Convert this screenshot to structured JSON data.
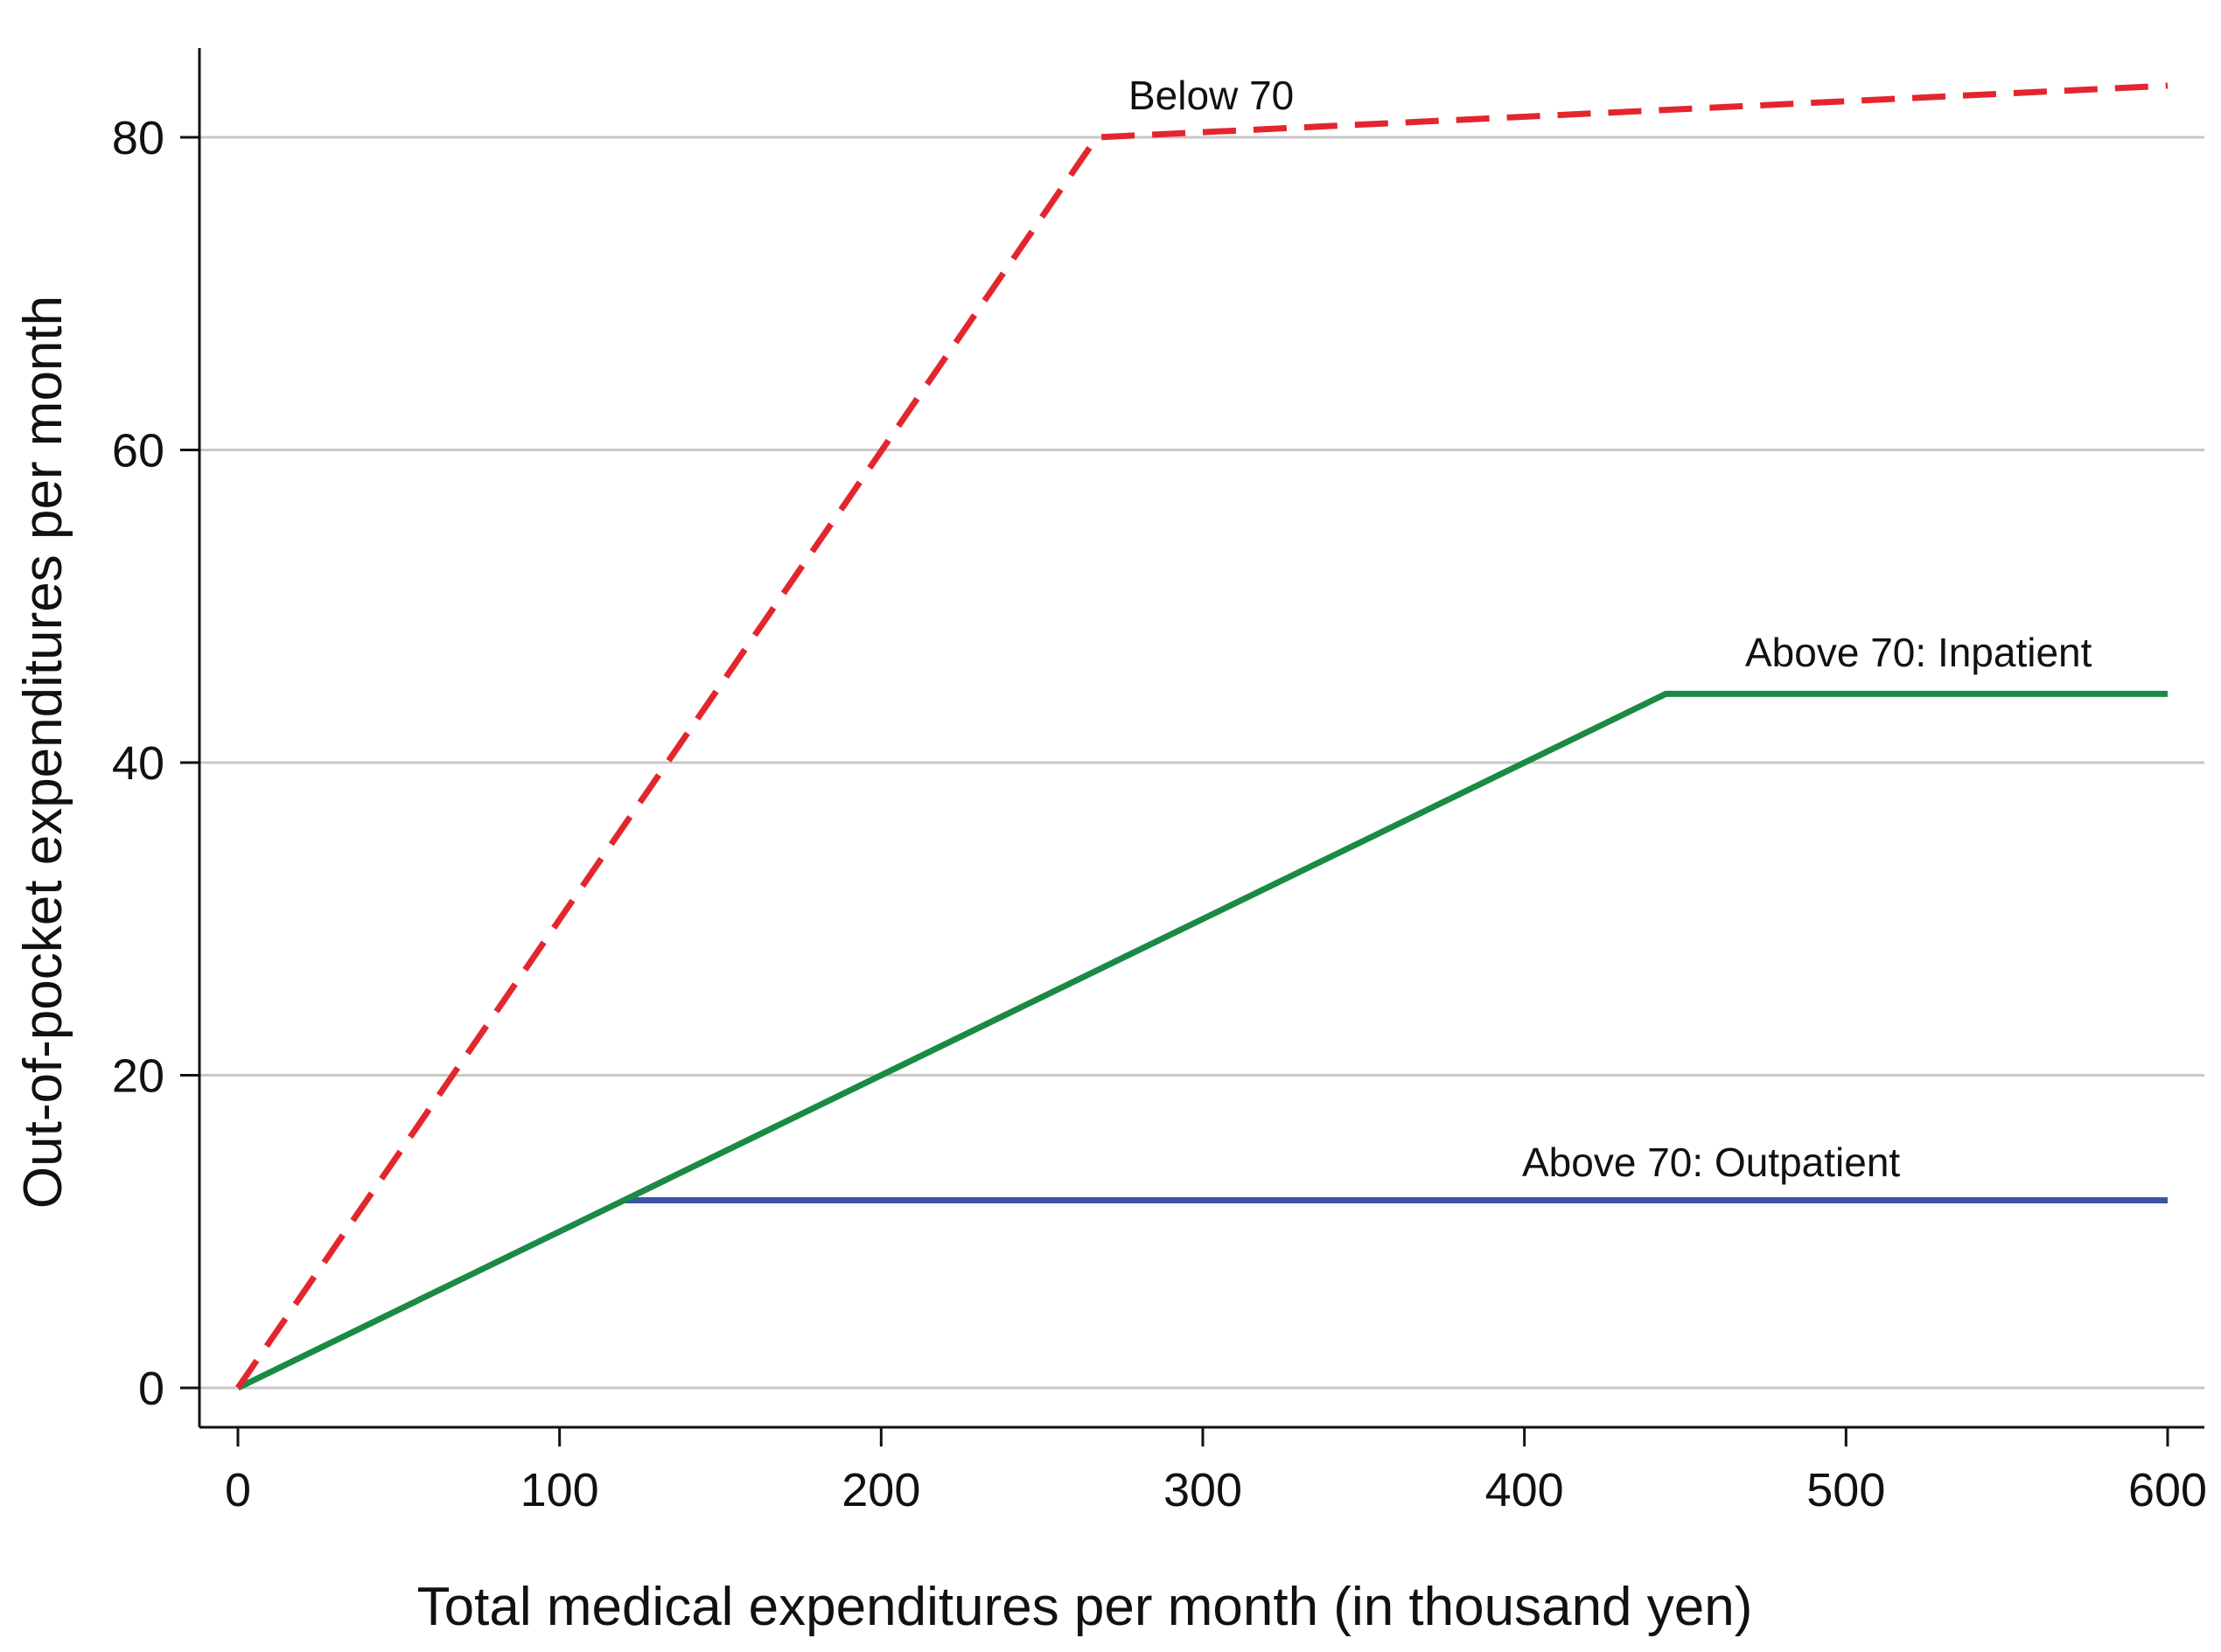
{
  "chart_data": {
    "type": "line",
    "title": "",
    "xlabel": "Total medical expenditures per month (in thousand yen)",
    "ylabel": "Out-of-pocket expenditures per month",
    "xlim": [
      0,
      600
    ],
    "ylim": [
      0,
      80
    ],
    "x_ticks": [
      0,
      100,
      200,
      300,
      400,
      500,
      600
    ],
    "y_ticks": [
      0,
      20,
      40,
      60,
      80
    ],
    "grid": "horizontal",
    "legend": "none",
    "series": [
      {
        "name": "Below 70",
        "style": "dashed",
        "color": "#e3262d",
        "points": [
          [
            0,
            0
          ],
          [
            267,
            80
          ],
          [
            600,
            83.3
          ]
        ]
      },
      {
        "name": "Above 70: Inpatient",
        "style": "solid",
        "color": "#1a8a45",
        "points": [
          [
            0,
            0
          ],
          [
            444,
            44.4
          ],
          [
            600,
            44.4
          ]
        ]
      },
      {
        "name": "Above 70: Outpatient",
        "style": "solid",
        "color": "#3a55a4",
        "points": [
          [
            120,
            12
          ],
          [
            600,
            12
          ]
        ]
      }
    ]
  }
}
